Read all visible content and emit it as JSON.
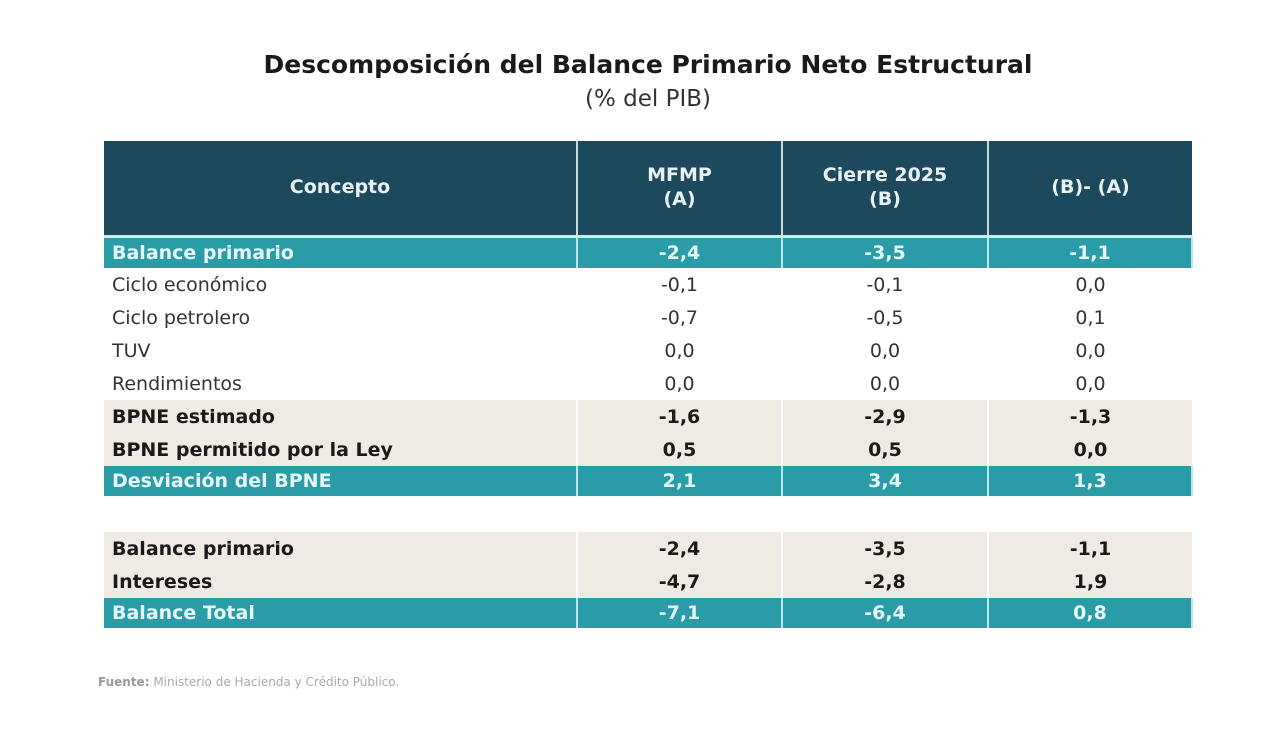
{
  "title": "Descomposición del Balance Primario Neto Estructural",
  "subtitle": "(% del PIB)",
  "colors": {
    "header": "#1c4a5c",
    "highlight": "#2a9ca8",
    "band": "#efebe4"
  },
  "table": {
    "headers": [
      [
        "Concepto"
      ],
      [
        "MFMP",
        "(A)"
      ],
      [
        "Cierre 2025",
        "(B)"
      ],
      [
        "(B)- (A)"
      ]
    ],
    "rows": [
      {
        "style": "teal",
        "cells": [
          "Balance primario",
          "-2,4",
          "-3,5",
          "-1,1"
        ]
      },
      {
        "style": "plain",
        "cells": [
          "Ciclo económico",
          "-0,1",
          "-0,1",
          "0,0"
        ]
      },
      {
        "style": "plain",
        "cells": [
          "Ciclo petrolero",
          "-0,7",
          "-0,5",
          "0,1"
        ]
      },
      {
        "style": "plain",
        "cells": [
          "TUV",
          "0,0",
          "0,0",
          "0,0"
        ]
      },
      {
        "style": "plain",
        "cells": [
          "Rendimientos",
          "0,0",
          "0,0",
          "0,0"
        ]
      },
      {
        "style": "beige",
        "cells": [
          "BPNE estimado",
          "-1,6",
          "-2,9",
          "-1,3"
        ]
      },
      {
        "style": "beige",
        "cells": [
          "BPNE permitido por la Ley",
          "0,5",
          "0,5",
          "0,0"
        ]
      },
      {
        "style": "teal",
        "cells": [
          "Desviación del BPNE",
          "2,1",
          "3,4",
          "1,3"
        ]
      },
      {
        "style": "gap",
        "cells": [
          "",
          "",
          "",
          ""
        ]
      },
      {
        "style": "beige",
        "cells": [
          "Balance primario",
          "-2,4",
          "-3,5",
          "-1,1"
        ]
      },
      {
        "style": "beige",
        "cells": [
          "Intereses",
          "-4,7",
          "-2,8",
          "1,9"
        ]
      },
      {
        "style": "teal",
        "cells": [
          "Balance Total",
          "-7,1",
          "-6,4",
          "0,8"
        ]
      }
    ]
  },
  "source": {
    "label": "Fuente:",
    "text": " Ministerio de Hacienda y Crédito Público."
  }
}
